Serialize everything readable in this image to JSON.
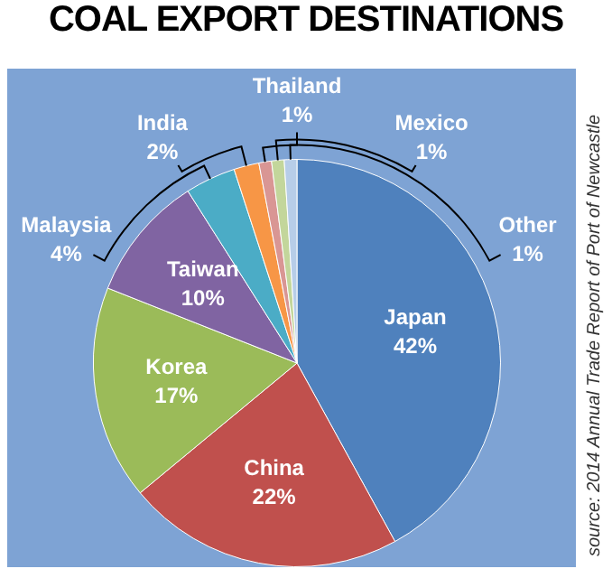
{
  "chart_data": {
    "type": "pie",
    "title": "COAL EXPORT DESTINATIONS",
    "categories": [
      "Japan",
      "China",
      "Korea",
      "Taiwan",
      "Malaysia",
      "India",
      "Thailand",
      "Mexico",
      "Other"
    ],
    "values": [
      42,
      22,
      17,
      10,
      4,
      2,
      1,
      1,
      1
    ],
    "value_labels": [
      "42%",
      "22%",
      "17%",
      "10%",
      "4%",
      "2%",
      "1%",
      "1%",
      "1%"
    ],
    "colors": [
      "#4f81bd",
      "#c0504d",
      "#9bbb59",
      "#8064a2",
      "#4bacc6",
      "#f79646",
      "#d99694",
      "#c3d69b",
      "#b7cde8"
    ],
    "annotations": [
      "source: 2014 Annual Trade Report of Port of Newcastle"
    ],
    "legend": false
  }
}
